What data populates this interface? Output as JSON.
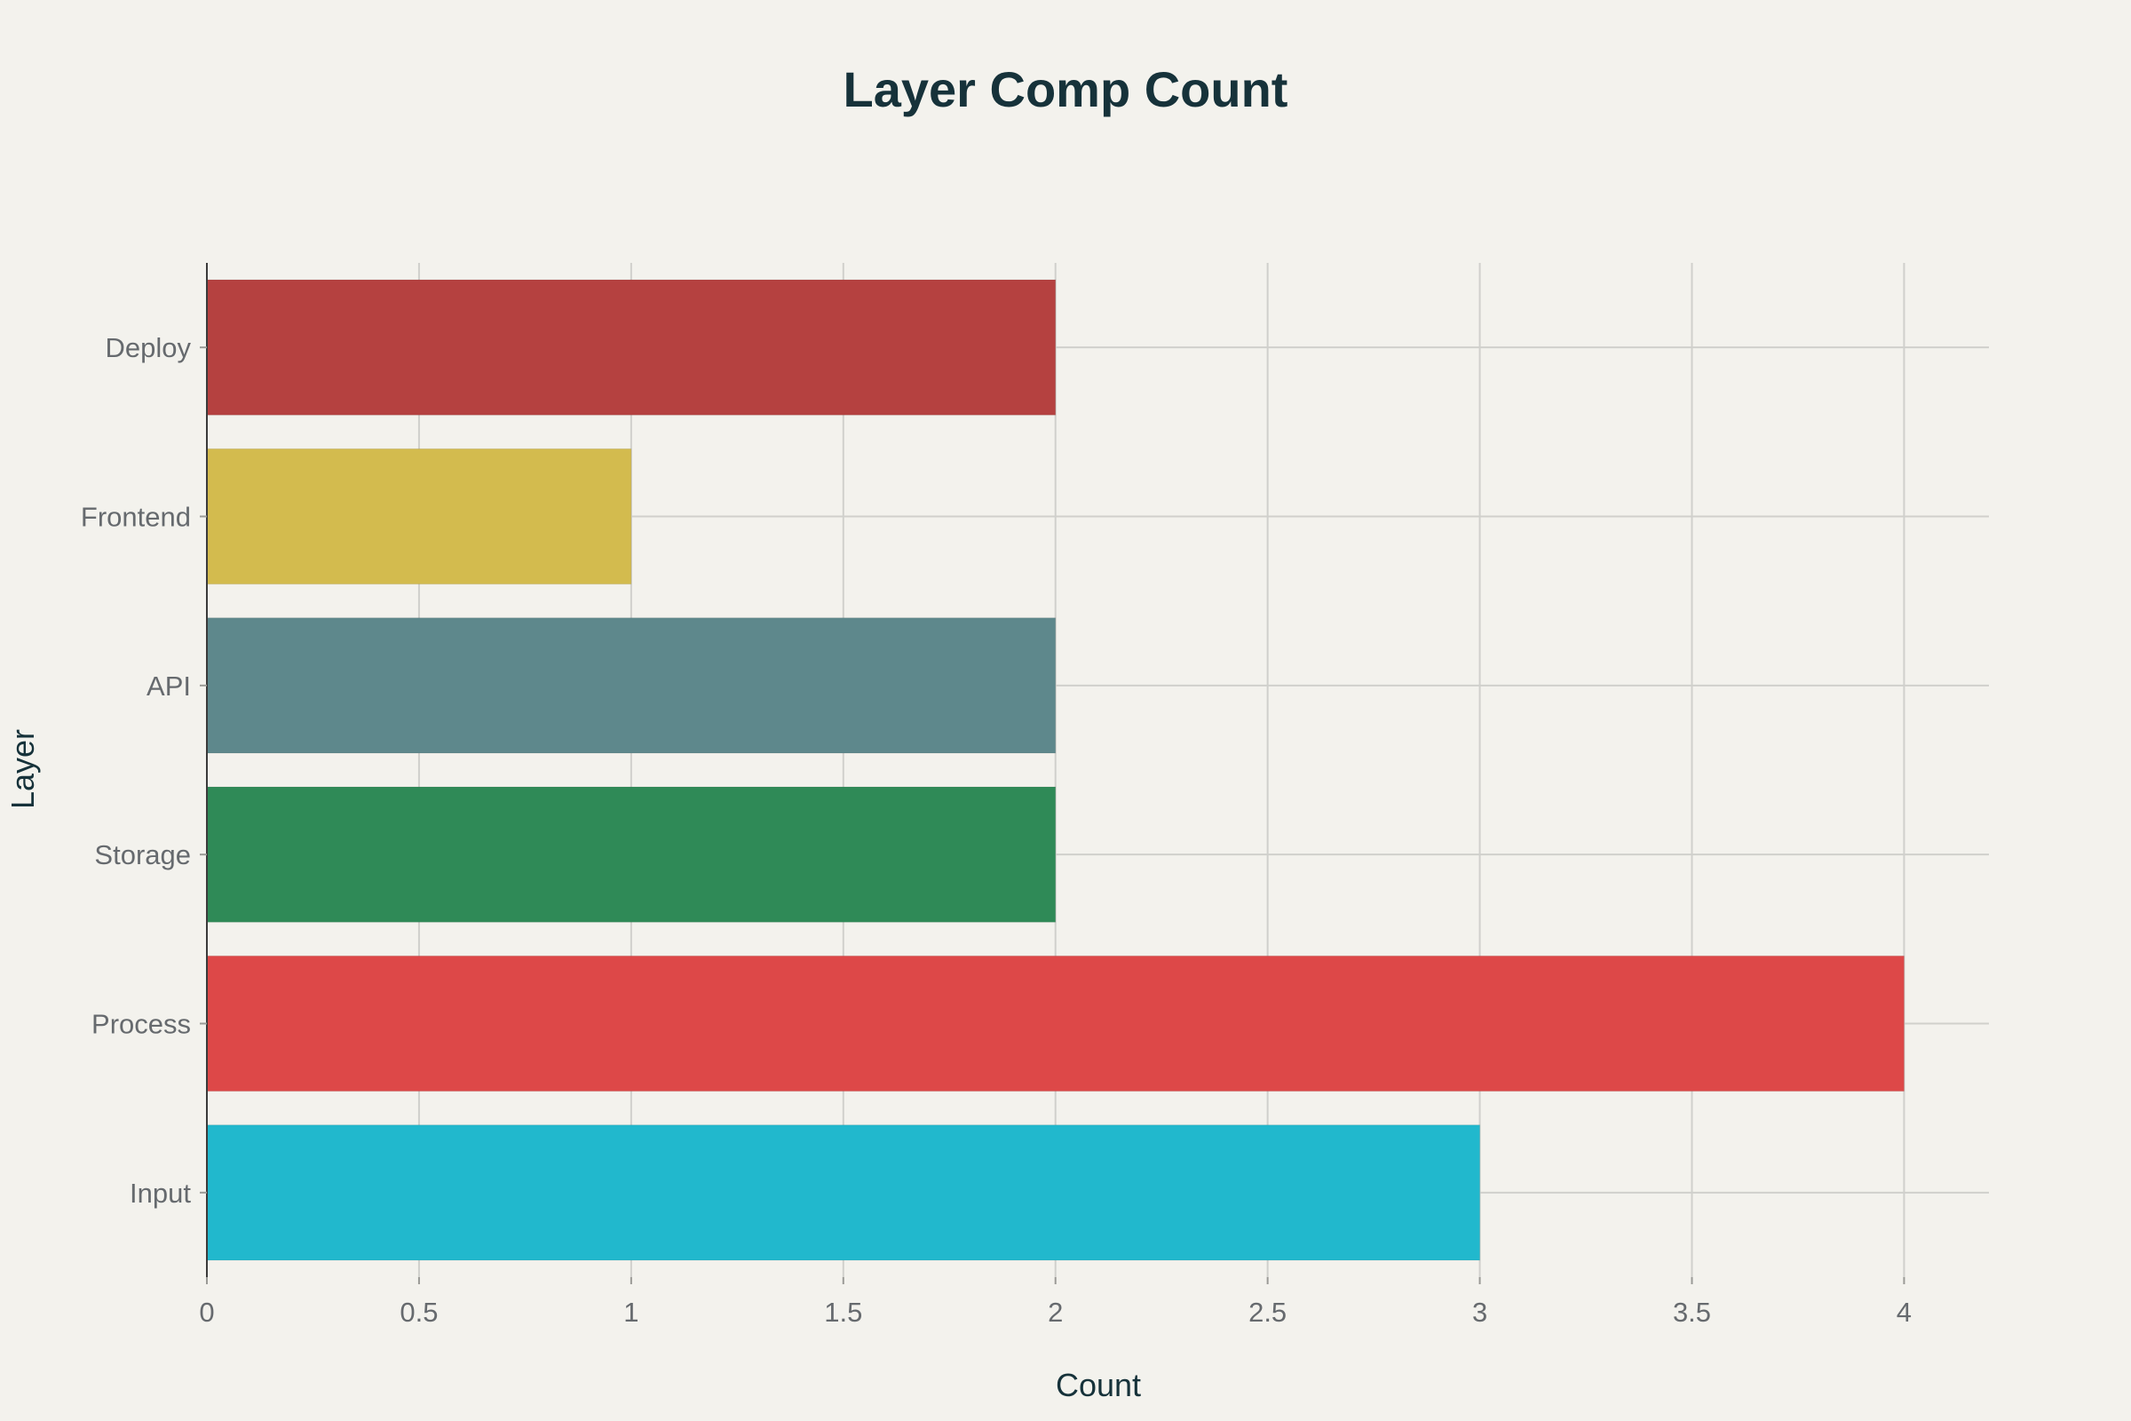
{
  "chart_data": {
    "type": "bar",
    "orientation": "horizontal",
    "title": "Layer Comp Count",
    "xlabel": "Count",
    "ylabel": "Layer",
    "categories": [
      "Input",
      "Process",
      "Storage",
      "API",
      "Frontend",
      "Deploy"
    ],
    "values": [
      3,
      4,
      2,
      2,
      1,
      2
    ],
    "colors": [
      "#21b8cd",
      "#dd4848",
      "#2f8a57",
      "#5e888c",
      "#d3bb4e",
      "#b54140"
    ],
    "xlim": [
      0,
      4.2
    ],
    "xticks": [
      0,
      0.5,
      1,
      1.5,
      2,
      2.5,
      3,
      3.5,
      4
    ],
    "xtick_labels": [
      "0",
      "0.5",
      "1",
      "1.5",
      "2",
      "2.5",
      "3",
      "3.5",
      "4"
    ],
    "grid": true,
    "legend": false
  }
}
